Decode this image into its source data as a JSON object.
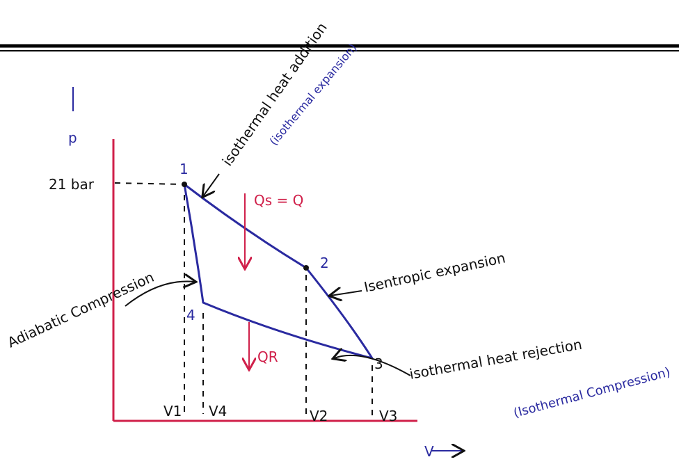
{
  "axes": {
    "y_label": "p",
    "x_label": "V",
    "pressure_label": "21 bar"
  },
  "points": [
    {
      "label": "1"
    },
    {
      "label": "2"
    },
    {
      "label": "3"
    },
    {
      "label": "4"
    }
  ],
  "volumes": [
    "V1",
    "V4",
    "V2",
    "V3"
  ],
  "annotations": {
    "heat_addition": "isothermal heat addition",
    "heat_addition_note": "(isothermal expansion)",
    "heat_supplied": "Qs = Q",
    "isentropic": "Isentropic expansion",
    "heat_rejection": "isothermal heat rejection",
    "heat_rejection_note": "(Isothermal Compression)",
    "heat_rejected": "QR",
    "adiabatic": "Adiabatic Compression"
  }
}
